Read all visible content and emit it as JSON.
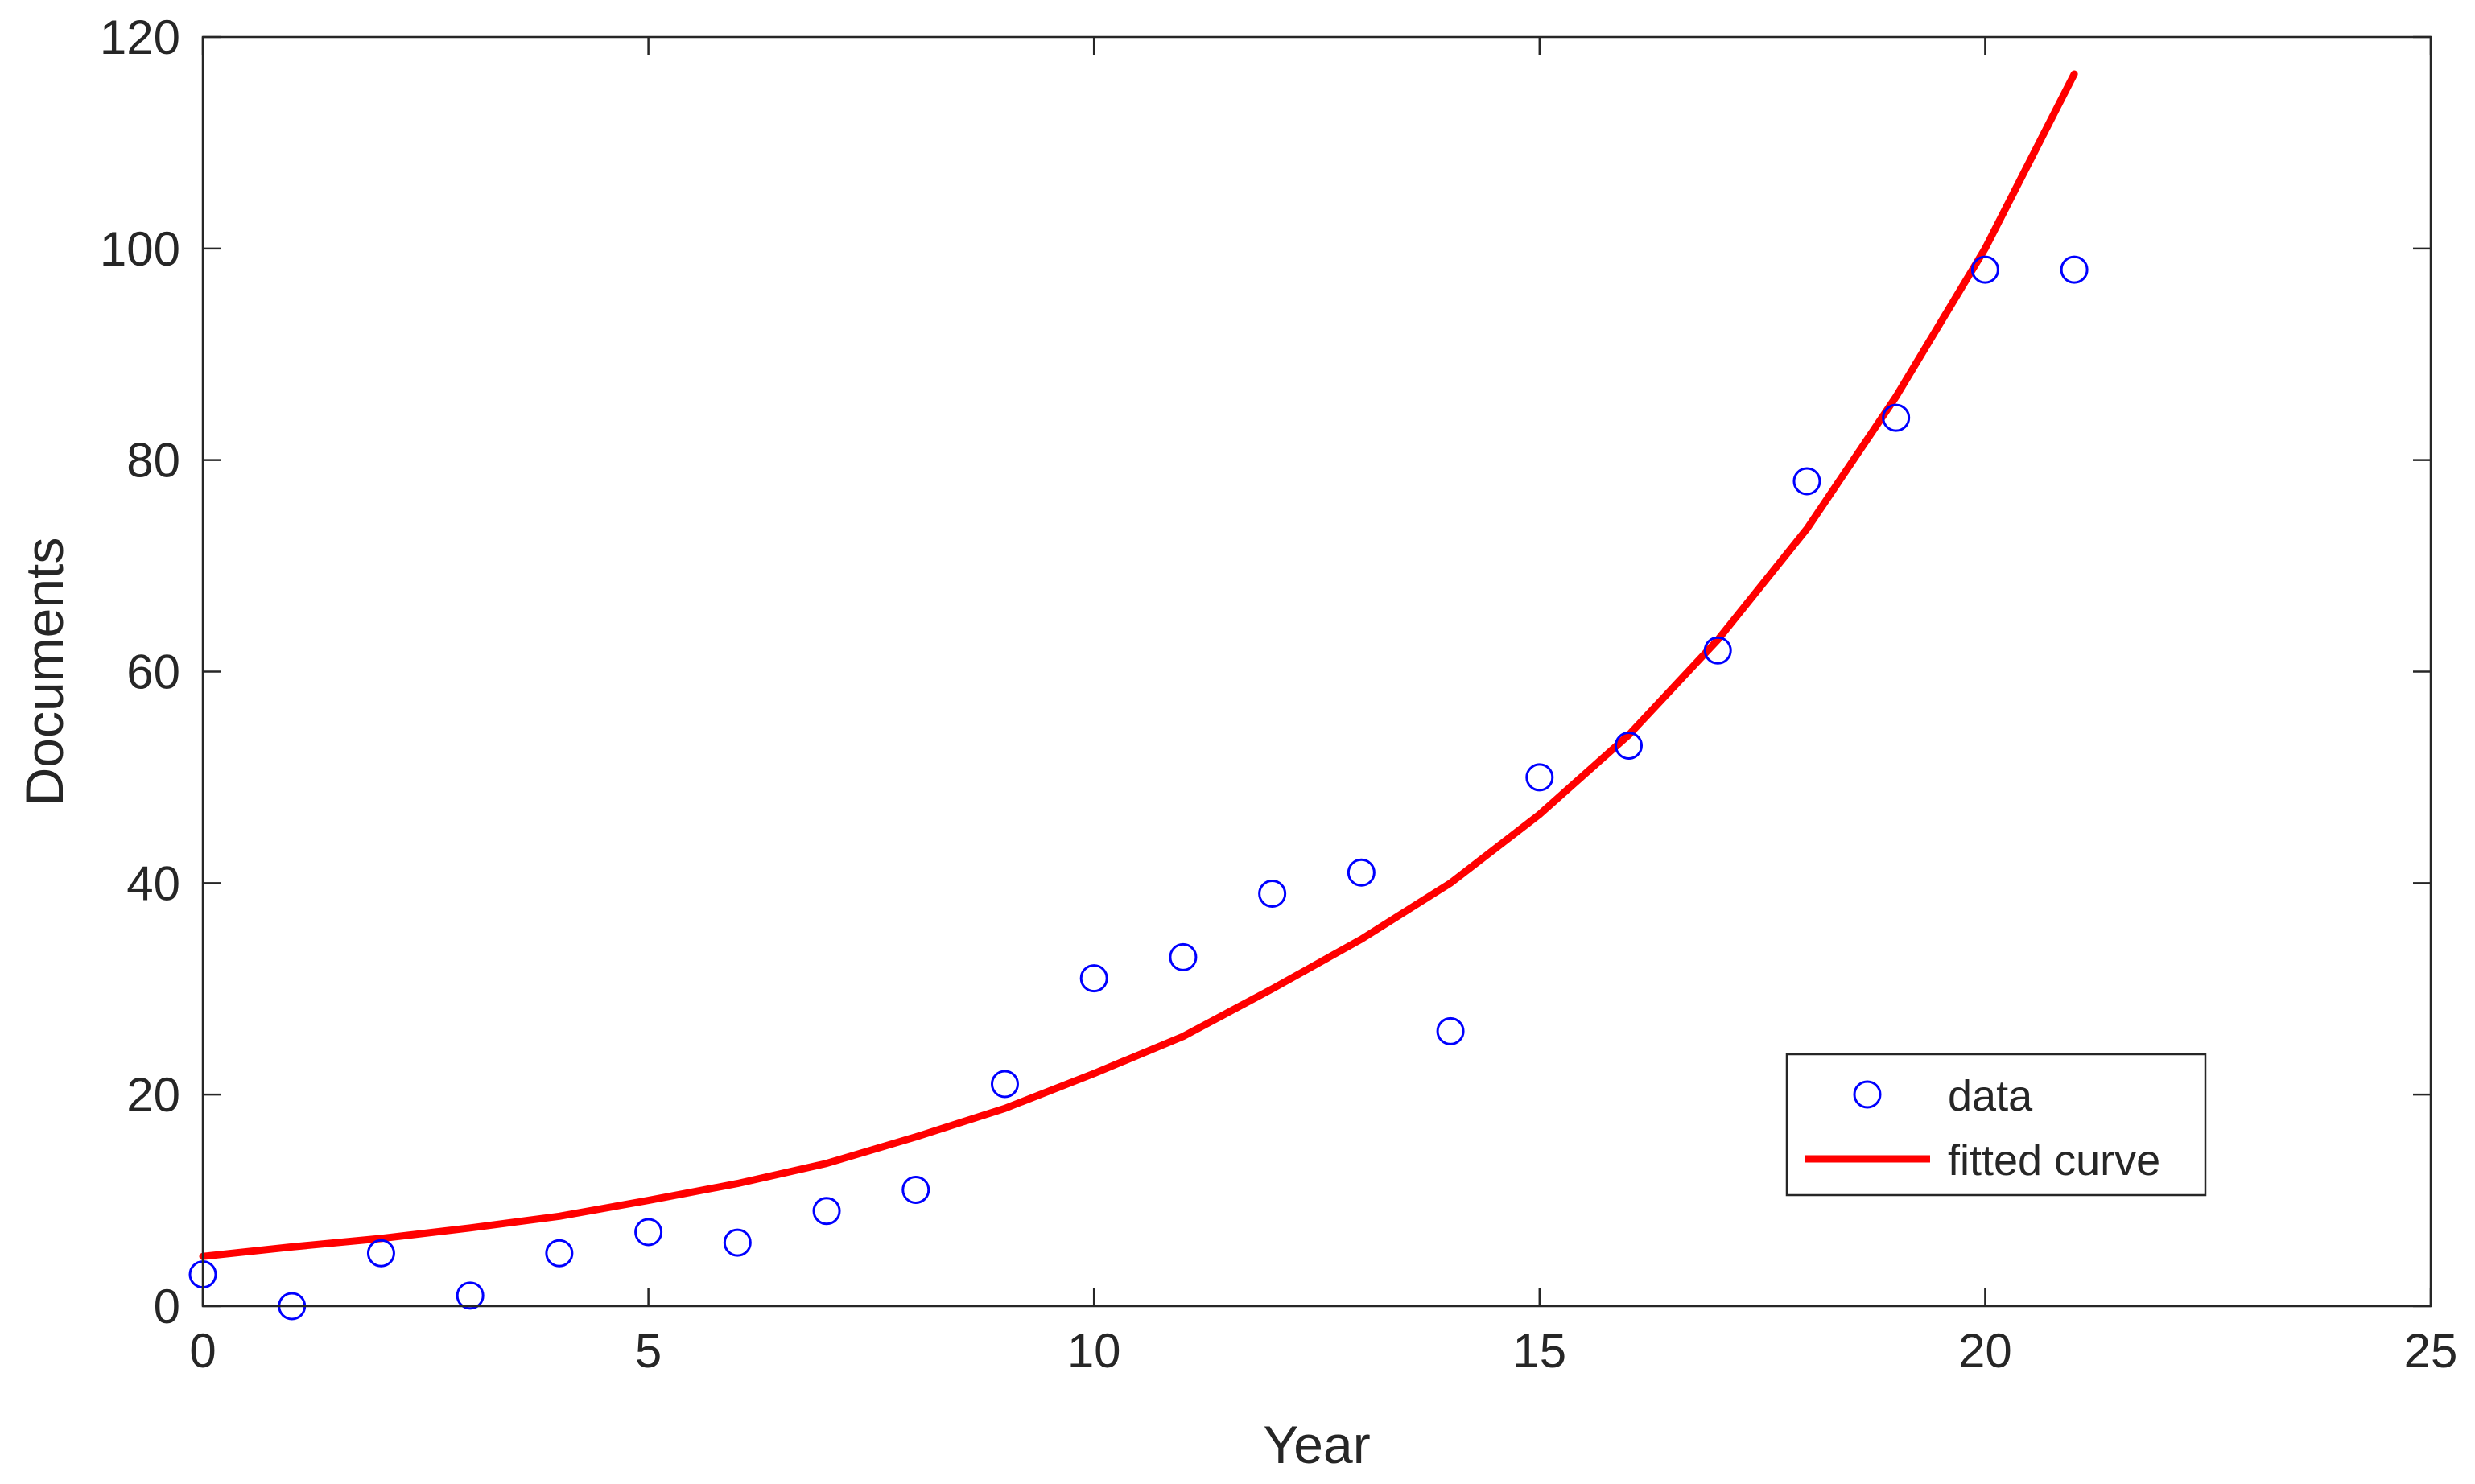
{
  "chart_data": {
    "type": "scatter",
    "title": "",
    "xlabel": "Year",
    "ylabel": "Documents",
    "xlim": [
      0,
      25
    ],
    "ylim": [
      0,
      120
    ],
    "xticks": [
      0,
      5,
      10,
      15,
      20,
      25
    ],
    "yticks": [
      0,
      20,
      40,
      60,
      80,
      100,
      120
    ],
    "grid": false,
    "legend_position": "bottom-right",
    "series": [
      {
        "name": "data",
        "kind": "scatter",
        "marker": "circle-open",
        "color": "#0000ff",
        "x": [
          0,
          1,
          2,
          3,
          4,
          5,
          6,
          7,
          8,
          9,
          10,
          11,
          12,
          13,
          14,
          15,
          16,
          17,
          18,
          19,
          20,
          21
        ],
        "y": [
          3,
          0,
          5,
          1,
          5,
          7,
          6,
          9,
          11,
          21,
          31,
          33,
          39,
          41,
          26,
          50,
          53,
          62,
          78,
          84,
          98,
          98
        ]
      },
      {
        "name": "fitted curve",
        "kind": "line",
        "color": "#ff0000",
        "x": [
          0,
          1,
          2,
          3,
          4,
          5,
          6,
          7,
          8,
          9,
          10,
          11,
          12,
          13,
          14,
          15,
          16,
          17,
          18,
          19,
          20,
          21
        ],
        "y": [
          4.7,
          5.6,
          6.4,
          7.4,
          8.5,
          10.0,
          11.6,
          13.5,
          16.0,
          18.7,
          22.0,
          25.5,
          30.0,
          34.7,
          40.0,
          46.5,
          54.0,
          63.0,
          73.5,
          86.0,
          100.0,
          116.5
        ]
      }
    ]
  }
}
